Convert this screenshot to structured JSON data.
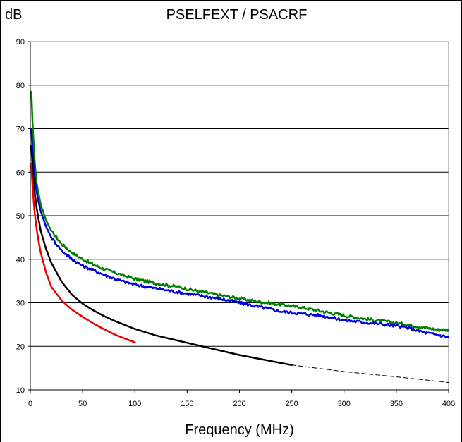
{
  "chart_data": {
    "type": "line",
    "title": "PSELFEXT / PSACRF",
    "ylabel": "dB",
    "xlabel": "Frequency (MHz)",
    "xlim": [
      0,
      400
    ],
    "ylim": [
      10,
      90
    ],
    "xticks": [
      0,
      50,
      100,
      150,
      200,
      250,
      300,
      350,
      400
    ],
    "yticks": [
      10,
      20,
      30,
      40,
      50,
      60,
      70,
      80,
      90
    ],
    "grid": "horizontal",
    "legend": "none",
    "series": [
      {
        "color": "#008000",
        "style": "solid-noisy",
        "x": [
          1,
          2,
          4,
          6,
          8,
          10,
          15,
          20,
          30,
          40,
          50,
          60,
          70,
          80,
          90,
          100,
          120,
          140,
          160,
          180,
          200,
          220,
          240,
          260,
          280,
          300,
          320,
          340,
          360,
          380,
          390,
          400
        ],
        "y": [
          78.5,
          72,
          63,
          57.5,
          55,
          52.5,
          49,
          46.5,
          43.5,
          41.5,
          40,
          38.8,
          37.8,
          37,
          36.2,
          35.5,
          34.5,
          33.7,
          32.7,
          31.8,
          31,
          30.2,
          29.6,
          28.9,
          28,
          27.1,
          26.3,
          25.7,
          25,
          24.2,
          23.8,
          23.8
        ]
      },
      {
        "color": "#0000dd",
        "style": "solid-noisy",
        "x": [
          1,
          2,
          4,
          6,
          8,
          10,
          15,
          20,
          30,
          40,
          50,
          60,
          70,
          80,
          90,
          100,
          120,
          140,
          160,
          180,
          200,
          220,
          240,
          260,
          280,
          300,
          320,
          340,
          360,
          380,
          390,
          400
        ],
        "y": [
          70,
          65,
          59,
          55.5,
          53,
          51,
          47.5,
          45,
          42,
          40,
          38.5,
          37.5,
          36.5,
          35.6,
          34.8,
          34.2,
          33.3,
          32.5,
          31.7,
          31,
          30,
          29,
          28,
          27.5,
          27,
          26,
          25.5,
          25,
          24.3,
          23,
          22.6,
          22.1
        ]
      },
      {
        "color": "#000000",
        "style": "solid",
        "x": [
          1,
          2,
          4,
          6,
          8,
          10,
          15,
          20,
          30,
          40,
          50,
          60,
          70,
          80,
          100,
          120,
          150,
          200,
          250
        ],
        "y": [
          66,
          61.7,
          55.7,
          51.8,
          49,
          46.5,
          42.4,
          39.2,
          34.8,
          31.8,
          29.8,
          28.3,
          27,
          25.9,
          24,
          22.5,
          20.8,
          18,
          15.7
        ]
      },
      {
        "color": "#000000",
        "style": "dashed",
        "x": [
          250,
          300,
          350,
          400
        ],
        "y": [
          15.7,
          14.2,
          13,
          11.7
        ]
      },
      {
        "color": "#ee0000",
        "style": "solid",
        "x": [
          1,
          2,
          4,
          6,
          8,
          10,
          15,
          20,
          30,
          40,
          50,
          60,
          70,
          80,
          90,
          100
        ],
        "y": [
          62,
          57,
          51,
          47,
          44,
          41.5,
          37,
          33.7,
          30.5,
          28.4,
          26.8,
          25.3,
          24,
          22.8,
          21.8,
          20.9
        ]
      }
    ]
  }
}
